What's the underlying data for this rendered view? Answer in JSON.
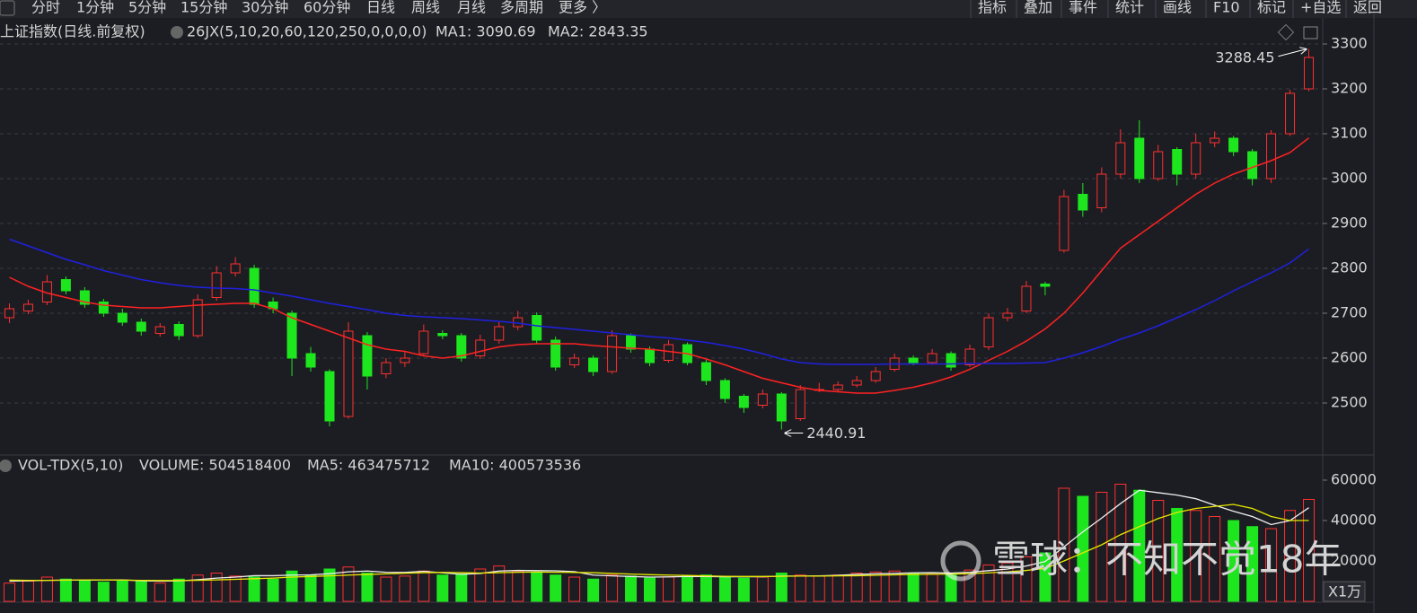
{
  "toolbar": {
    "periods": [
      "分时",
      "1分钟",
      "5分钟",
      "15分钟",
      "30分钟",
      "60分钟",
      "日线",
      "周线",
      "月线",
      "多周期",
      "更多 〉"
    ],
    "active_period": 6,
    "tools": [
      "指标",
      "叠加",
      "事件",
      "统计",
      "画线",
      "F10",
      "标记",
      "+自选",
      "返回"
    ]
  },
  "chart_data": [
    {
      "type": "candlestick",
      "title": "上证指数(日线.前复权)",
      "indicator": "26JX(5,10,20,60,120,250,0,0,0,0)",
      "up_color": "#ff3030",
      "down_color": "#1ee61e",
      "open": [
        2690,
        2705,
        2725,
        2775,
        2750,
        2725,
        2700,
        2680,
        2655,
        2675,
        2650,
        2735,
        2790,
        2800,
        2725,
        2700,
        2610,
        2570,
        2470,
        2650,
        2565,
        2590,
        2610,
        2655,
        2650,
        2605,
        2640,
        2670,
        2695,
        2640,
        2585,
        2600,
        2570,
        2650,
        2620,
        2595,
        2630,
        2590,
        2550,
        2515,
        2495,
        2520,
        2465,
        2530,
        2530,
        2540,
        2550,
        2575,
        2600,
        2590,
        2610,
        2585,
        2625,
        2690,
        2705,
        2765,
        2840,
        2965,
        2935,
        3010,
        3090,
        3000,
        3065,
        3010,
        3080,
        3090,
        3060,
        3000,
        3100,
        3200
      ],
      "high": [
        2722,
        2730,
        2785,
        2782,
        2758,
        2732,
        2710,
        2688,
        2678,
        2682,
        2742,
        2805,
        2825,
        2808,
        2735,
        2706,
        2625,
        2575,
        2680,
        2658,
        2600,
        2615,
        2675,
        2662,
        2656,
        2652,
        2680,
        2705,
        2702,
        2648,
        2610,
        2606,
        2662,
        2655,
        2626,
        2640,
        2635,
        2596,
        2555,
        2520,
        2530,
        2524,
        2540,
        2545,
        2548,
        2560,
        2580,
        2610,
        2606,
        2620,
        2615,
        2630,
        2700,
        2712,
        2772,
        2770,
        2975,
        2990,
        3025,
        3110,
        3130,
        3075,
        3070,
        3100,
        3105,
        3095,
        3066,
        3108,
        3198,
        3288.45
      ],
      "low": [
        2678,
        2698,
        2718,
        2742,
        2712,
        2692,
        2672,
        2650,
        2648,
        2640,
        2645,
        2728,
        2782,
        2712,
        2700,
        2560,
        2570,
        2448,
        2465,
        2530,
        2555,
        2580,
        2605,
        2642,
        2592,
        2598,
        2632,
        2662,
        2632,
        2572,
        2578,
        2560,
        2565,
        2612,
        2582,
        2590,
        2584,
        2540,
        2500,
        2478,
        2488,
        2440.91,
        2460,
        2524,
        2525,
        2535,
        2545,
        2570,
        2584,
        2585,
        2572,
        2580,
        2618,
        2682,
        2700,
        2740,
        2835,
        2915,
        2925,
        3000,
        2990,
        2995,
        2985,
        3000,
        3070,
        3050,
        2985,
        2990,
        3095,
        3195
      ],
      "close": [
        2710,
        2720,
        2770,
        2750,
        2720,
        2700,
        2680,
        2660,
        2670,
        2650,
        2730,
        2790,
        2810,
        2720,
        2710,
        2600,
        2580,
        2460,
        2660,
        2560,
        2590,
        2600,
        2660,
        2650,
        2600,
        2640,
        2670,
        2690,
        2640,
        2580,
        2600,
        2570,
        2650,
        2620,
        2590,
        2630,
        2590,
        2550,
        2510,
        2490,
        2520,
        2460,
        2530,
        2530,
        2540,
        2550,
        2570,
        2600,
        2590,
        2610,
        2580,
        2620,
        2690,
        2700,
        2760,
        2760,
        2960,
        2930,
        3010,
        3080,
        3000,
        3060,
        3010,
        3080,
        3090,
        3060,
        3000,
        3100,
        3190,
        3270
      ],
      "series": [
        {
          "name": "MA1: 3090.69",
          "color": "#ff2222",
          "values": [
            2780,
            2760,
            2745,
            2735,
            2725,
            2718,
            2715,
            2712,
            2712,
            2715,
            2718,
            2720,
            2722,
            2722,
            2710,
            2690,
            2675,
            2660,
            2645,
            2630,
            2620,
            2615,
            2605,
            2600,
            2605,
            2615,
            2625,
            2630,
            2632,
            2632,
            2632,
            2628,
            2625,
            2622,
            2620,
            2615,
            2610,
            2598,
            2585,
            2570,
            2555,
            2545,
            2535,
            2528,
            2525,
            2522,
            2522,
            2528,
            2535,
            2545,
            2558,
            2575,
            2595,
            2615,
            2638,
            2665,
            2700,
            2745,
            2795,
            2845,
            2875,
            2905,
            2935,
            2965,
            2990,
            3010,
            3025,
            3040,
            3058,
            3090.69
          ]
        },
        {
          "name": "MA2: 2843.35",
          "color": "#2020e0",
          "values": [
            2865,
            2850,
            2835,
            2820,
            2808,
            2795,
            2785,
            2775,
            2768,
            2762,
            2758,
            2756,
            2755,
            2752,
            2745,
            2738,
            2730,
            2722,
            2715,
            2708,
            2700,
            2695,
            2692,
            2690,
            2688,
            2685,
            2682,
            2678,
            2672,
            2668,
            2664,
            2660,
            2656,
            2652,
            2648,
            2645,
            2640,
            2635,
            2628,
            2620,
            2610,
            2598,
            2590,
            2587,
            2586,
            2586,
            2586,
            2587,
            2587,
            2587,
            2587,
            2588,
            2588,
            2588,
            2589,
            2590,
            2600,
            2612,
            2626,
            2642,
            2656,
            2672,
            2690,
            2708,
            2728,
            2750,
            2770,
            2790,
            2812,
            2843.35
          ]
        }
      ],
      "ylim": [
        2384,
        3354
      ],
      "yticks": [
        2500,
        2600,
        2700,
        2800,
        2900,
        3000,
        3100,
        3200,
        3300
      ],
      "grid": true
    },
    {
      "type": "bar",
      "title": "VOL-TDX(5,10)",
      "subtitle": "VOLUME: 504518400",
      "unit_label": "X1万",
      "values": [
        9000,
        10000,
        12000,
        11000,
        10500,
        9500,
        10000,
        9800,
        9000,
        11000,
        13000,
        14000,
        12500,
        12000,
        11000,
        15000,
        13000,
        16000,
        17000,
        14000,
        12000,
        12500,
        15000,
        13000,
        13500,
        16000,
        17500,
        15000,
        14000,
        13000,
        12000,
        11000,
        13000,
        12500,
        11500,
        12000,
        12500,
        13000,
        12000,
        11500,
        12000,
        14000,
        13000,
        12500,
        13000,
        14000,
        14500,
        15000,
        14000,
        13500,
        13000,
        15500,
        18000,
        19000,
        22000,
        24000,
        56000,
        52000,
        54000,
        58000,
        55000,
        50000,
        46000,
        45000,
        42000,
        40000,
        37000,
        36000,
        45000,
        50451.84
      ],
      "series": [
        {
          "name": "MA5: 463475712",
          "color": "#f0f0f0",
          "values": [
            10000,
            10200,
            10400,
            10500,
            10500,
            10600,
            10600,
            10200,
            10000,
            10100,
            10700,
            11500,
            12000,
            12700,
            12700,
            13000,
            13100,
            13700,
            14600,
            15000,
            14400,
            14300,
            14900,
            14100,
            13400,
            13800,
            15000,
            15300,
            15200,
            15100,
            14700,
            13000,
            12600,
            12300,
            12000,
            12100,
            12300,
            12300,
            12200,
            12200,
            12200,
            12500,
            12500,
            12600,
            12900,
            13300,
            13600,
            13800,
            14100,
            14200,
            14000,
            14400,
            15200,
            16000,
            17500,
            19700,
            27000,
            34400,
            41200,
            48400,
            55000,
            53800,
            52600,
            50800,
            47600,
            44600,
            42000,
            38000,
            40000,
            46347.5712
          ]
        },
        {
          "name": "MA10: 400573536",
          "color": "#e8e800",
          "values": [
            10500,
            10400,
            10400,
            10500,
            10600,
            10600,
            10500,
            10400,
            10300,
            10300,
            10400,
            10600,
            10900,
            11200,
            11500,
            12000,
            12300,
            12600,
            13000,
            13300,
            13600,
            13900,
            14200,
            14300,
            14200,
            14000,
            14200,
            14400,
            14500,
            14400,
            14300,
            14200,
            13800,
            13500,
            13200,
            13000,
            12800,
            12600,
            12400,
            12300,
            12300,
            12400,
            12500,
            12500,
            12600,
            12700,
            12900,
            13100,
            13300,
            13400,
            13500,
            13700,
            14100,
            14600,
            15300,
            16300,
            20000,
            24000,
            28000,
            33000,
            37000,
            41000,
            44000,
            46000,
            47000,
            48000,
            46000,
            42000,
            40000,
            40057.3536
          ]
        }
      ],
      "ylim": [
        0,
        63100
      ],
      "yticks": [
        20000,
        40000,
        60000
      ],
      "grid": false
    }
  ],
  "watermark": "雪球：不知不觉18年"
}
